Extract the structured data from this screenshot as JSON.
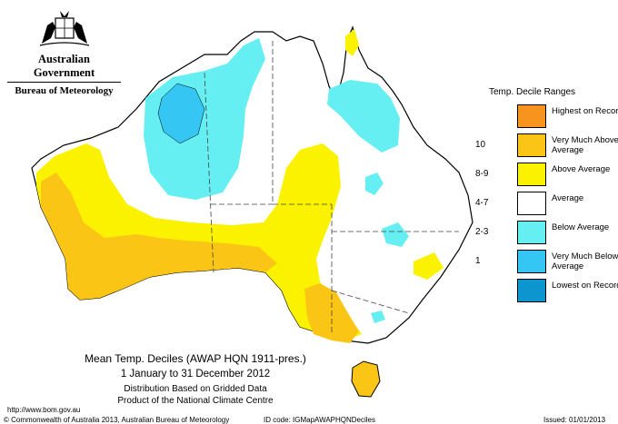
{
  "header": {
    "government": "Australian Government",
    "bureau": "Bureau of Meteorology"
  },
  "legend": {
    "title": "Temp. Decile Ranges",
    "items": [
      {
        "range": "",
        "label": "Highest on Record",
        "color": "#F6941D"
      },
      {
        "range": "10",
        "label": "Very Much Above Average",
        "color": "#FBC516"
      },
      {
        "range": "8-9",
        "label": "Above Average",
        "color": "#FBF200"
      },
      {
        "range": "4-7",
        "label": "Average",
        "color": "#FFFFFF"
      },
      {
        "range": "2-3",
        "label": "Below Average",
        "color": "#66EFF2"
      },
      {
        "range": "1",
        "label": "Very Much Below Average",
        "color": "#36C6F4"
      },
      {
        "range": "",
        "label": "Lowest on Record",
        "color": "#0D95D0"
      }
    ]
  },
  "caption": {
    "title": "Mean Temp. Deciles (AWAP HQN 1911-pres.)",
    "period": "1 January to 31 December 2012",
    "line3": "Distribution Based on Gridded Data",
    "line4": "Product of the National Climate Centre"
  },
  "footer": {
    "url": "http://www.bom.gov.au",
    "copyright": "© Commonwealth of Australia 2013, Australian Bureau of Meteorology",
    "id_code": "ID code: IGMapAWAPHQNDeciles",
    "issued": "Issued: 01/01/2013"
  }
}
